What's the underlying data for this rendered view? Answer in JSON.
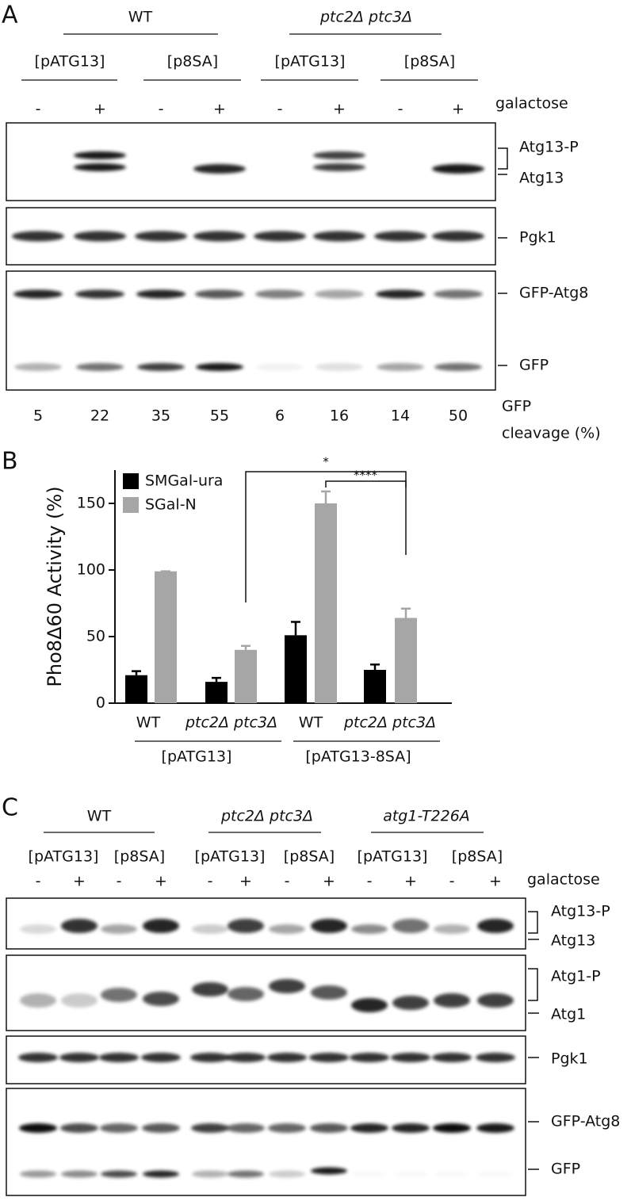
{
  "panel_a": {
    "label": "A",
    "groups": [
      "WT",
      "ptc2Δ ptc3Δ"
    ],
    "plasmids": [
      "[pATG13]",
      "[p8SA]",
      "[pATG13]",
      "[p8SA]"
    ],
    "treatment": [
      "-",
      "+",
      "-",
      "+",
      "-",
      "+",
      "-",
      "+"
    ],
    "treatment_label": "galactose",
    "blot_labels": [
      "Atg13-P",
      "Atg13",
      "Pgk1",
      "GFP-Atg8",
      "GFP"
    ],
    "quant_label": [
      "GFP",
      "cleavage (%)"
    ],
    "quant_values": [
      5,
      22,
      35,
      55,
      6,
      16,
      14,
      50
    ]
  },
  "chart_data": {
    "type": "bar",
    "panel_label": "B",
    "ylabel": "Pho8Δ60 Activity (%)",
    "categories": [
      "WT",
      "ptc2Δ ptc3Δ",
      "WT",
      "ptc2Δ ptc3Δ"
    ],
    "groups": [
      "[pATG13]",
      "[pATG13-8SA]"
    ],
    "series": [
      {
        "name": "SMGal-ura",
        "color": "#000000",
        "values": [
          21,
          16,
          51,
          25
        ],
        "errors": [
          3,
          3,
          10,
          4
        ]
      },
      {
        "name": "SGal-N",
        "color": "#a6a6a6",
        "values": [
          99,
          40,
          150,
          64
        ],
        "errors": [
          0,
          3,
          9,
          7
        ]
      }
    ],
    "ylim": [
      0,
      175
    ],
    "yticks": [
      0,
      50,
      100,
      150
    ],
    "legend": "upper-left",
    "annotations": [
      "*",
      "****"
    ]
  },
  "panel_c": {
    "label": "C",
    "groups": [
      "WT",
      "ptc2Δ ptc3Δ",
      "atg1-T226A"
    ],
    "plasmids": [
      "[pATG13]",
      "[p8SA]",
      "[pATG13]",
      "[p8SA]",
      "[pATG13]",
      "[p8SA]"
    ],
    "treatment": [
      "-",
      "+",
      "-",
      "+",
      "-",
      "+",
      "-",
      "+",
      "-",
      "+",
      "-",
      "+"
    ],
    "treatment_label": "galactose",
    "blot_labels": [
      "Atg13-P",
      "Atg13",
      "Atg1-P",
      "Atg1",
      "Pgk1",
      "GFP-Atg8",
      "GFP"
    ]
  }
}
